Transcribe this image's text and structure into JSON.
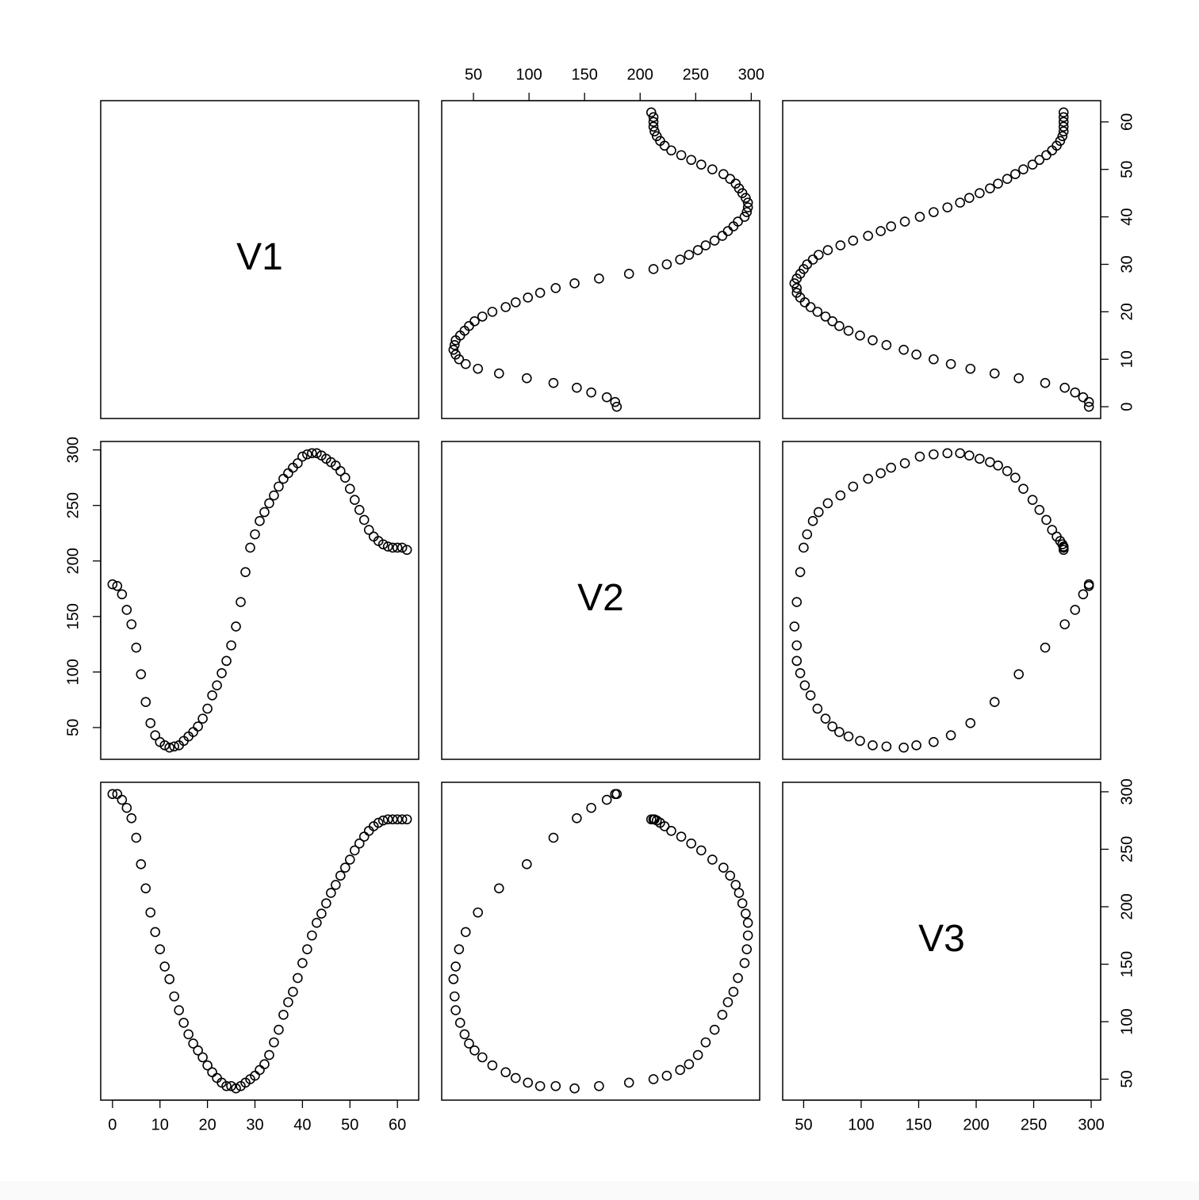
{
  "chart_data": {
    "type": "scatter-matrix",
    "variables": [
      {
        "name": "V1",
        "lim": [
          -2.48,
          64.48
        ],
        "ticks": [
          0,
          10,
          20,
          30,
          40,
          50,
          60
        ],
        "values": [
          0,
          1,
          2,
          3,
          4,
          5,
          6,
          7,
          8,
          9,
          10,
          11,
          12,
          13,
          14,
          15,
          16,
          17,
          18,
          19,
          20,
          21,
          22,
          23,
          24,
          25,
          26,
          27,
          28,
          29,
          30,
          31,
          32,
          33,
          34,
          35,
          36,
          37,
          38,
          39,
          40,
          41,
          42,
          43,
          44,
          45,
          46,
          47,
          48,
          49,
          50,
          51,
          52,
          53,
          54,
          55,
          56,
          57,
          58,
          59,
          60,
          61,
          62
        ]
      },
      {
        "name": "V2",
        "lim": [
          21.4,
          307.6
        ],
        "ticks": [
          50,
          100,
          150,
          200,
          250,
          300
        ],
        "values": [
          179,
          177.5,
          170,
          156,
          143,
          122,
          98,
          73,
          54,
          43,
          37,
          34,
          32,
          33,
          34,
          38,
          42,
          46,
          51,
          58,
          67,
          79,
          88,
          99,
          110,
          124,
          141,
          163,
          190,
          212,
          224,
          236,
          244,
          252,
          259,
          267,
          274,
          279,
          284,
          288,
          294,
          296,
          297,
          297,
          295,
          292,
          289,
          286,
          281,
          275,
          265,
          255,
          246,
          237,
          228,
          222,
          218,
          215,
          213,
          212,
          212,
          212,
          210
        ]
      },
      {
        "name": "V3",
        "lim": [
          31.76,
          308.24
        ],
        "ticks": [
          50,
          100,
          150,
          200,
          250,
          300
        ],
        "values": [
          298,
          298,
          293,
          286,
          277,
          260,
          237,
          216,
          195,
          178,
          163,
          148,
          137,
          122,
          110,
          99,
          89,
          81,
          75,
          69,
          62,
          56,
          51,
          47,
          44,
          44,
          42,
          44,
          47,
          50,
          53,
          58,
          63,
          71,
          82,
          93,
          106,
          117,
          126,
          138,
          151,
          163,
          175,
          186,
          194,
          203,
          212,
          219,
          227,
          234,
          241,
          249,
          255,
          261,
          266,
          270,
          273,
          275,
          276,
          276,
          276,
          276,
          276
        ]
      }
    ]
  }
}
